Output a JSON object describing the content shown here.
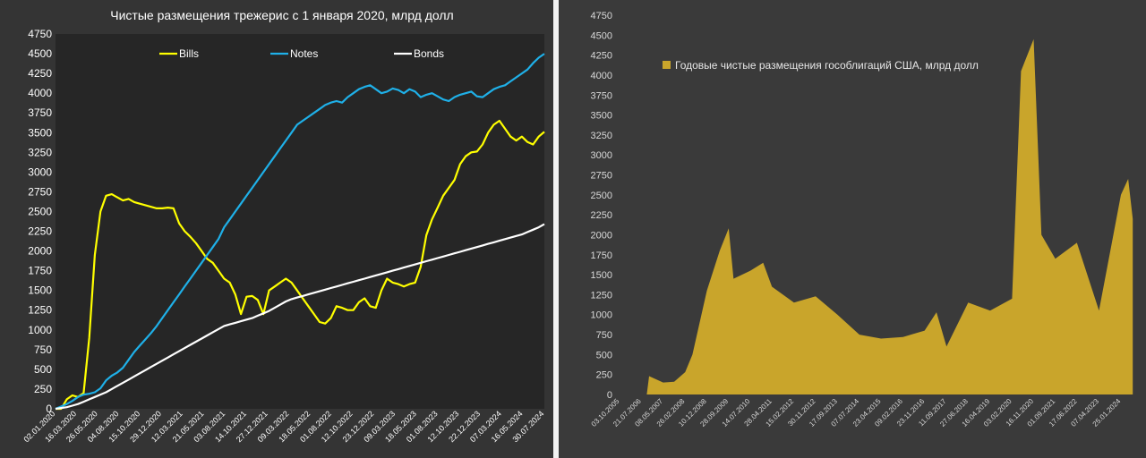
{
  "chart_data": [
    {
      "type": "line",
      "title": "Чистые размещения трежерис с 1 января 2020, млрд долл",
      "xlabel": "",
      "ylabel": "",
      "ylim": [
        0,
        4750
      ],
      "yticks": [
        "0",
        "250",
        "500",
        "750",
        "1000",
        "1250",
        "1500",
        "1750",
        "2000",
        "2250",
        "2500",
        "2750",
        "3000",
        "3250",
        "3500",
        "3750",
        "4000",
        "4250",
        "4500",
        "4750"
      ],
      "x_tick_labels": [
        "02.01.2020",
        "16.03.2020",
        "26.05.2020",
        "04.08.2020",
        "15.10.2020",
        "29.12.2020",
        "12.03.2021",
        "21.05.2021",
        "03.08.2021",
        "14.10.2021",
        "27.12.2021",
        "09.03.2022",
        "18.05.2022",
        "01.08.2022",
        "12.10.2022",
        "23.12.2022",
        "09.03.2023",
        "18.05.2023",
        "01.08.2023",
        "12.10.2023",
        "22.12.2023",
        "07.03.2024",
        "16.05.2024",
        "30.07.2024"
      ],
      "legend_position": "top",
      "grid": false,
      "series": [
        {
          "name": "Bills",
          "color": "#ffff00",
          "values": [
            0,
            0,
            120,
            170,
            150,
            200,
            900,
            1950,
            2500,
            2700,
            2720,
            2680,
            2640,
            2660,
            2620,
            2600,
            2580,
            2560,
            2540,
            2540,
            2550,
            2540,
            2350,
            2250,
            2180,
            2100,
            2000,
            1900,
            1850,
            1750,
            1650,
            1600,
            1450,
            1200,
            1420,
            1430,
            1380,
            1200,
            1500,
            1550,
            1600,
            1650,
            1600,
            1500,
            1400,
            1300,
            1200,
            1100,
            1080,
            1150,
            1300,
            1280,
            1250,
            1250,
            1350,
            1400,
            1300,
            1280,
            1500,
            1650,
            1600,
            1580,
            1550,
            1580,
            1600,
            1800,
            2200,
            2400,
            2550,
            2700,
            2800,
            2900,
            3100,
            3200,
            3250,
            3260,
            3350,
            3500,
            3600,
            3650,
            3550,
            3450,
            3400,
            3450,
            3380,
            3350,
            3450,
            3510
          ]
        },
        {
          "name": "Notes",
          "color": "#1fb0e8",
          "values": [
            0,
            30,
            60,
            100,
            150,
            180,
            190,
            210,
            260,
            360,
            420,
            460,
            520,
            620,
            720,
            800,
            880,
            960,
            1050,
            1150,
            1250,
            1350,
            1450,
            1550,
            1650,
            1750,
            1850,
            1950,
            2050,
            2150,
            2300,
            2400,
            2500,
            2600,
            2700,
            2800,
            2900,
            3000,
            3100,
            3200,
            3300,
            3400,
            3500,
            3600,
            3650,
            3700,
            3750,
            3800,
            3850,
            3880,
            3900,
            3880,
            3950,
            4000,
            4050,
            4080,
            4100,
            4050,
            4000,
            4020,
            4060,
            4040,
            4000,
            4050,
            4020,
            3950,
            3980,
            4000,
            3960,
            3920,
            3900,
            3950,
            3980,
            4000,
            4020,
            3960,
            3950,
            4000,
            4050,
            4080,
            4100,
            4150,
            4200,
            4250,
            4300,
            4380,
            4450,
            4500
          ]
        },
        {
          "name": "Bonds",
          "color": "#ffffff",
          "values": [
            0,
            10,
            20,
            40,
            60,
            90,
            120,
            150,
            180,
            210,
            250,
            290,
            330,
            370,
            410,
            450,
            490,
            530,
            570,
            610,
            650,
            690,
            730,
            770,
            810,
            850,
            890,
            930,
            970,
            1010,
            1050,
            1070,
            1090,
            1110,
            1130,
            1150,
            1180,
            1210,
            1240,
            1280,
            1320,
            1360,
            1390,
            1410,
            1430,
            1450,
            1470,
            1490,
            1510,
            1530,
            1550,
            1570,
            1590,
            1610,
            1630,
            1650,
            1670,
            1690,
            1710,
            1730,
            1750,
            1770,
            1790,
            1810,
            1830,
            1850,
            1870,
            1890,
            1910,
            1930,
            1950,
            1970,
            1990,
            2010,
            2030,
            2050,
            2070,
            2090,
            2110,
            2130,
            2150,
            2170,
            2190,
            2210,
            2240,
            2270,
            2300,
            2340
          ]
        }
      ]
    },
    {
      "type": "area",
      "title": "",
      "xlabel": "",
      "ylabel": "",
      "ylim": [
        0,
        4750
      ],
      "yticks": [
        "0",
        "250",
        "500",
        "750",
        "1000",
        "1250",
        "1500",
        "1750",
        "2000",
        "2250",
        "2500",
        "2750",
        "3000",
        "3250",
        "3500",
        "3750",
        "4000",
        "4250",
        "4500",
        "4750"
      ],
      "x_tick_labels": [
        "03.10.2005",
        "21.07.2006",
        "08.05.2007",
        "26.02.2008",
        "10.12.2008",
        "28.09.2009",
        "14.07.2010",
        "28.04.2011",
        "15.02.2012",
        "30.11.2012",
        "17.09.2013",
        "07.07.2014",
        "23.04.2015",
        "09.02.2016",
        "23.11.2016",
        "11.09.2017",
        "27.06.2018",
        "16.04.2019",
        "03.02.2020",
        "16.11.2020",
        "01.09.2021",
        "17.06.2022",
        "07.04.2023",
        "25.01.2024"
      ],
      "legend_position": "top-left",
      "grid": false,
      "series": [
        {
          "name": "Годовые чистые размещения гособлигаций США, млрд долл",
          "color": "#c9a52b",
          "values": [
            {
              "x": "03.10.2005",
              "y": 0
            },
            {
              "x": "21.07.2006",
              "y": 0
            },
            {
              "x": "01.10.2006",
              "y": 0
            },
            {
              "x": "01.11.2006",
              "y": 230
            },
            {
              "x": "08.05.2007",
              "y": 150
            },
            {
              "x": "01.10.2007",
              "y": 160
            },
            {
              "x": "26.02.2008",
              "y": 280
            },
            {
              "x": "01.06.2008",
              "y": 500
            },
            {
              "x": "10.12.2008",
              "y": 1300
            },
            {
              "x": "01.06.2009",
              "y": 1800
            },
            {
              "x": "28.09.2009",
              "y": 2080
            },
            {
              "x": "01.12.2009",
              "y": 1450
            },
            {
              "x": "14.07.2010",
              "y": 1550
            },
            {
              "x": "01.01.2011",
              "y": 1650
            },
            {
              "x": "28.04.2011",
              "y": 1350
            },
            {
              "x": "15.02.2012",
              "y": 1150
            },
            {
              "x": "30.11.2012",
              "y": 1230
            },
            {
              "x": "17.09.2013",
              "y": 1000
            },
            {
              "x": "07.07.2014",
              "y": 750
            },
            {
              "x": "23.04.2015",
              "y": 700
            },
            {
              "x": "09.02.2016",
              "y": 720
            },
            {
              "x": "23.11.2016",
              "y": 800
            },
            {
              "x": "01.05.2017",
              "y": 1030
            },
            {
              "x": "11.09.2017",
              "y": 600
            },
            {
              "x": "27.06.2018",
              "y": 1150
            },
            {
              "x": "16.04.2019",
              "y": 1050
            },
            {
              "x": "03.02.2020",
              "y": 1200
            },
            {
              "x": "01.06.2020",
              "y": 4050
            },
            {
              "x": "16.11.2020",
              "y": 4450
            },
            {
              "x": "01.03.2021",
              "y": 2000
            },
            {
              "x": "01.09.2021",
              "y": 1700
            },
            {
              "x": "17.06.2022",
              "y": 1900
            },
            {
              "x": "07.04.2023",
              "y": 1050
            },
            {
              "x": "25.01.2024",
              "y": 2500
            },
            {
              "x": "01.05.2024",
              "y": 2700
            },
            {
              "x": "01.07.2024",
              "y": 2200
            }
          ]
        }
      ]
    }
  ]
}
